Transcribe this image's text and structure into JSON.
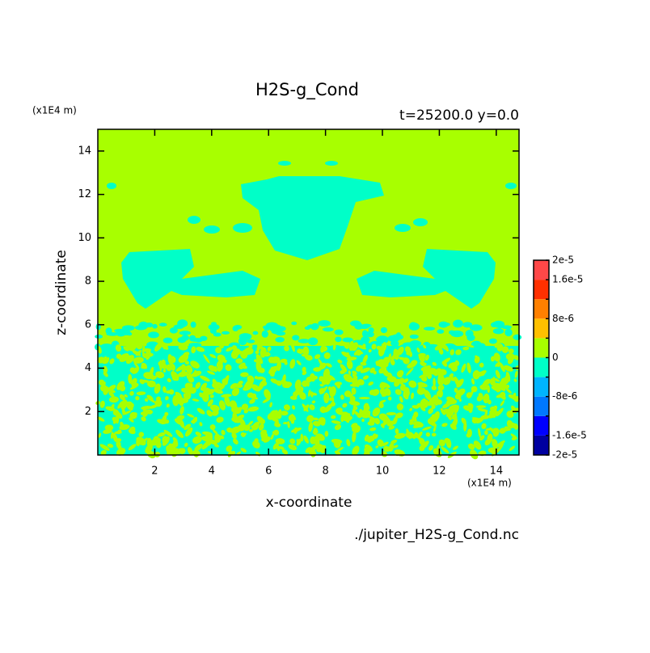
{
  "chart_data": {
    "type": "contour",
    "title": "H2S-g_Cond",
    "subtitle": "t=25200.0 y=0.0",
    "x_label": "x-coordinate",
    "y_label": "z-coordinate",
    "x_unit": "(x1E4 m)",
    "y_unit": "(x1E4 m)",
    "source": "./jupiter_H2S-g_Cond.nc",
    "xlim": [
      0,
      14.8
    ],
    "ylim": [
      0,
      15
    ],
    "xticks": [
      2,
      4,
      6,
      8,
      10,
      12,
      14
    ],
    "yticks": [
      2,
      4,
      6,
      8,
      10,
      12,
      14
    ],
    "levels": [
      {
        "value": -2e-05,
        "label": "-2e-5"
      },
      {
        "value": -1.6e-05,
        "label": "-1.6e-5"
      },
      {
        "value": -1.2e-05,
        "label": null
      },
      {
        "value": -8e-06,
        "label": "-8e-6"
      },
      {
        "value": -4e-06,
        "label": null
      },
      0,
      {
        "value": 4e-06,
        "label": null
      },
      {
        "value": 8e-06,
        "label": "8e-6"
      },
      {
        "value": 1.2e-05,
        "label": null
      },
      {
        "value": 1.6e-05,
        "label": "1.6e-5"
      },
      {
        "value": 2e-05,
        "label": "2e-5"
      }
    ],
    "colors": [
      "#0000a0",
      "#0000ff",
      "#0078ff",
      "#00b4ff",
      "#00ffc8",
      "#a8ff00",
      "#ffc000",
      "#ff8000",
      "#ff3000",
      "#ff4848"
    ]
  }
}
